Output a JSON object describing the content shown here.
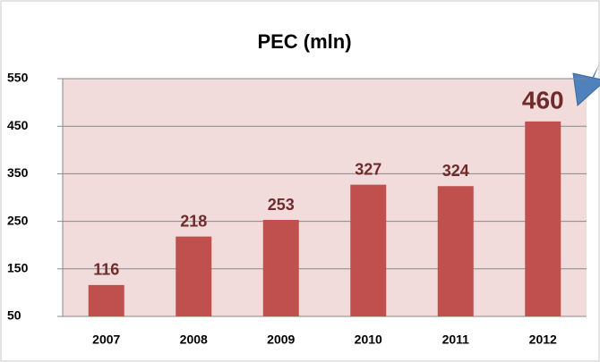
{
  "chart_data": {
    "type": "bar",
    "title": "PEC (mln)",
    "categories": [
      "2007",
      "2008",
      "2009",
      "2010",
      "2011",
      "2012"
    ],
    "values": [
      116,
      218,
      253,
      327,
      324,
      460
    ],
    "color": "#c0504d",
    "ylim": [
      50,
      550
    ],
    "yticks": [
      50,
      150,
      250,
      350,
      450,
      550
    ],
    "grid": true
  }
}
